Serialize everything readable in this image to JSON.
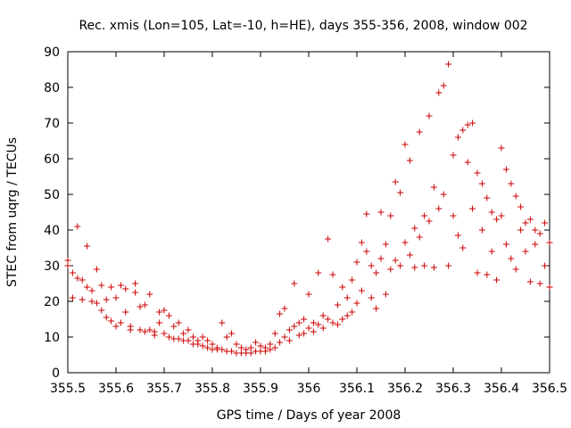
{
  "chart_data": {
    "type": "scatter",
    "title": "Rec. xmis (Lon=105, Lat=-10, h=HE), days 355-356, 2008, window 002",
    "xlabel": "GPS time / Days of year 2008",
    "ylabel": "STEC from uqrg / TECUs",
    "xlim": [
      355.5,
      356.5
    ],
    "ylim": [
      0,
      90
    ],
    "xticks": [
      "355.5",
      "355.6",
      "355.7",
      "355.8",
      "355.9",
      "356",
      "356.1",
      "356.2",
      "356.3",
      "356.4",
      "356.5"
    ],
    "yticks": [
      "0",
      "10",
      "20",
      "30",
      "40",
      "50",
      "60",
      "70",
      "80",
      "90"
    ],
    "marker": "plus",
    "color": "#cc0000",
    "grid": false,
    "legend": "none",
    "points": [
      [
        355.5,
        31.5
      ],
      [
        355.5,
        30.0
      ],
      [
        355.51,
        21.0
      ],
      [
        355.51,
        28.0
      ],
      [
        355.52,
        41.0
      ],
      [
        355.52,
        26.5
      ],
      [
        355.53,
        20.5
      ],
      [
        355.53,
        26.0
      ],
      [
        355.54,
        35.5
      ],
      [
        355.54,
        24.0
      ],
      [
        355.55,
        23.0
      ],
      [
        355.55,
        20.0
      ],
      [
        355.56,
        29.0
      ],
      [
        355.56,
        19.5
      ],
      [
        355.57,
        24.5
      ],
      [
        355.57,
        17.5
      ],
      [
        355.58,
        15.5
      ],
      [
        355.58,
        20.5
      ],
      [
        355.59,
        24.0
      ],
      [
        355.59,
        14.5
      ],
      [
        355.6,
        21.0
      ],
      [
        355.6,
        13.0
      ],
      [
        355.61,
        24.5
      ],
      [
        355.61,
        14.0
      ],
      [
        355.62,
        23.5
      ],
      [
        355.62,
        17.0
      ],
      [
        355.63,
        13.0
      ],
      [
        355.63,
        12.0
      ],
      [
        355.64,
        25.0
      ],
      [
        355.64,
        22.5
      ],
      [
        355.65,
        18.5
      ],
      [
        355.65,
        12.0
      ],
      [
        355.66,
        19.0
      ],
      [
        355.66,
        11.5
      ],
      [
        355.67,
        22.0
      ],
      [
        355.67,
        12.0
      ],
      [
        355.68,
        11.5
      ],
      [
        355.68,
        10.5
      ],
      [
        355.69,
        17.0
      ],
      [
        355.69,
        14.0
      ],
      [
        355.7,
        17.5
      ],
      [
        355.7,
        11.0
      ],
      [
        355.71,
        16.0
      ],
      [
        355.71,
        10.0
      ],
      [
        355.72,
        13.0
      ],
      [
        355.72,
        9.5
      ],
      [
        355.73,
        14.0
      ],
      [
        355.73,
        9.5
      ],
      [
        355.74,
        11.0
      ],
      [
        355.74,
        9.0
      ],
      [
        355.75,
        12.0
      ],
      [
        355.75,
        9.0
      ],
      [
        355.76,
        10.0
      ],
      [
        355.76,
        8.0
      ],
      [
        355.77,
        9.0
      ],
      [
        355.77,
        8.0
      ],
      [
        355.78,
        10.0
      ],
      [
        355.78,
        7.5
      ],
      [
        355.79,
        9.0
      ],
      [
        355.79,
        7.0
      ],
      [
        355.8,
        8.0
      ],
      [
        355.8,
        6.5
      ],
      [
        355.81,
        7.0
      ],
      [
        355.81,
        6.5
      ],
      [
        355.82,
        14.0
      ],
      [
        355.82,
        6.5
      ],
      [
        355.83,
        10.0
      ],
      [
        355.83,
        6.0
      ],
      [
        355.84,
        11.0
      ],
      [
        355.84,
        6.0
      ],
      [
        355.85,
        8.0
      ],
      [
        355.85,
        5.5
      ],
      [
        355.86,
        7.0
      ],
      [
        355.86,
        5.5
      ],
      [
        355.87,
        6.5
      ],
      [
        355.87,
        5.5
      ],
      [
        355.88,
        7.0
      ],
      [
        355.88,
        5.5
      ],
      [
        355.89,
        8.5
      ],
      [
        355.89,
        6.0
      ],
      [
        355.9,
        7.5
      ],
      [
        355.9,
        6.0
      ],
      [
        355.91,
        7.0
      ],
      [
        355.91,
        6.0
      ],
      [
        355.92,
        8.0
      ],
      [
        355.92,
        6.5
      ],
      [
        355.93,
        11.0
      ],
      [
        355.93,
        7.0
      ],
      [
        355.94,
        16.5
      ],
      [
        355.94,
        8.5
      ],
      [
        355.95,
        18.0
      ],
      [
        355.95,
        10.0
      ],
      [
        355.96,
        12.0
      ],
      [
        355.96,
        9.0
      ],
      [
        355.97,
        25.0
      ],
      [
        355.97,
        13.0
      ],
      [
        355.98,
        14.0
      ],
      [
        355.98,
        10.5
      ],
      [
        355.99,
        15.0
      ],
      [
        355.99,
        11.0
      ],
      [
        356.0,
        22.0
      ],
      [
        356.0,
        12.5
      ],
      [
        356.01,
        14.0
      ],
      [
        356.01,
        11.5
      ],
      [
        356.02,
        28.0
      ],
      [
        356.02,
        13.5
      ],
      [
        356.03,
        16.0
      ],
      [
        356.03,
        12.5
      ],
      [
        356.04,
        37.5
      ],
      [
        356.04,
        15.0
      ],
      [
        356.05,
        27.5
      ],
      [
        356.05,
        14.0
      ],
      [
        356.06,
        19.0
      ],
      [
        356.06,
        13.5
      ],
      [
        356.07,
        24.0
      ],
      [
        356.07,
        15.0
      ],
      [
        356.08,
        21.0
      ],
      [
        356.08,
        16.0
      ],
      [
        356.09,
        26.0
      ],
      [
        356.09,
        17.0
      ],
      [
        356.1,
        31.0
      ],
      [
        356.1,
        19.5
      ],
      [
        356.11,
        36.5
      ],
      [
        356.11,
        23.0
      ],
      [
        356.12,
        34.0
      ],
      [
        356.12,
        44.5
      ],
      [
        356.13,
        30.0
      ],
      [
        356.13,
        21.0
      ],
      [
        356.14,
        28.0
      ],
      [
        356.14,
        18.0
      ],
      [
        356.15,
        45.0
      ],
      [
        356.15,
        32.0
      ],
      [
        356.16,
        36.0
      ],
      [
        356.16,
        22.0
      ],
      [
        356.17,
        44.0
      ],
      [
        356.17,
        29.0
      ],
      [
        356.18,
        53.5
      ],
      [
        356.18,
        31.5
      ],
      [
        356.19,
        50.5
      ],
      [
        356.19,
        30.0
      ],
      [
        356.2,
        64.0
      ],
      [
        356.2,
        36.5
      ],
      [
        356.21,
        59.5
      ],
      [
        356.21,
        33.0
      ],
      [
        356.22,
        40.5
      ],
      [
        356.22,
        29.5
      ],
      [
        356.23,
        67.5
      ],
      [
        356.23,
        38.0
      ],
      [
        356.24,
        44.0
      ],
      [
        356.24,
        30.0
      ],
      [
        356.25,
        72.0
      ],
      [
        356.25,
        42.5
      ],
      [
        356.26,
        52.0
      ],
      [
        356.26,
        29.5
      ],
      [
        356.27,
        78.5
      ],
      [
        356.27,
        46.0
      ],
      [
        356.28,
        80.5
      ],
      [
        356.28,
        50.0
      ],
      [
        356.29,
        86.5
      ],
      [
        356.29,
        30.0
      ],
      [
        356.3,
        61.0
      ],
      [
        356.3,
        44.0
      ],
      [
        356.31,
        66.0
      ],
      [
        356.31,
        38.5
      ],
      [
        356.32,
        68.0
      ],
      [
        356.32,
        35.0
      ],
      [
        356.33,
        69.5
      ],
      [
        356.33,
        59.0
      ],
      [
        356.34,
        70.0
      ],
      [
        356.34,
        46.0
      ],
      [
        356.35,
        56.0
      ],
      [
        356.35,
        28.0
      ],
      [
        356.36,
        53.0
      ],
      [
        356.36,
        40.0
      ],
      [
        356.37,
        49.0
      ],
      [
        356.37,
        27.5
      ],
      [
        356.38,
        45.0
      ],
      [
        356.38,
        34.0
      ],
      [
        356.39,
        43.0
      ],
      [
        356.39,
        26.0
      ],
      [
        356.4,
        63.0
      ],
      [
        356.4,
        44.0
      ],
      [
        356.41,
        57.0
      ],
      [
        356.41,
        36.0
      ],
      [
        356.42,
        53.0
      ],
      [
        356.42,
        32.0
      ],
      [
        356.43,
        49.5
      ],
      [
        356.43,
        29.0
      ],
      [
        356.44,
        46.5
      ],
      [
        356.44,
        40.0
      ],
      [
        356.45,
        42.0
      ],
      [
        356.45,
        34.0
      ],
      [
        356.46,
        43.0
      ],
      [
        356.46,
        25.5
      ],
      [
        356.47,
        40.0
      ],
      [
        356.47,
        36.0
      ],
      [
        356.48,
        39.0
      ],
      [
        356.48,
        25.0
      ],
      [
        356.49,
        42.0
      ],
      [
        356.49,
        30.0
      ],
      [
        356.5,
        36.5
      ],
      [
        356.5,
        24.0
      ]
    ]
  }
}
